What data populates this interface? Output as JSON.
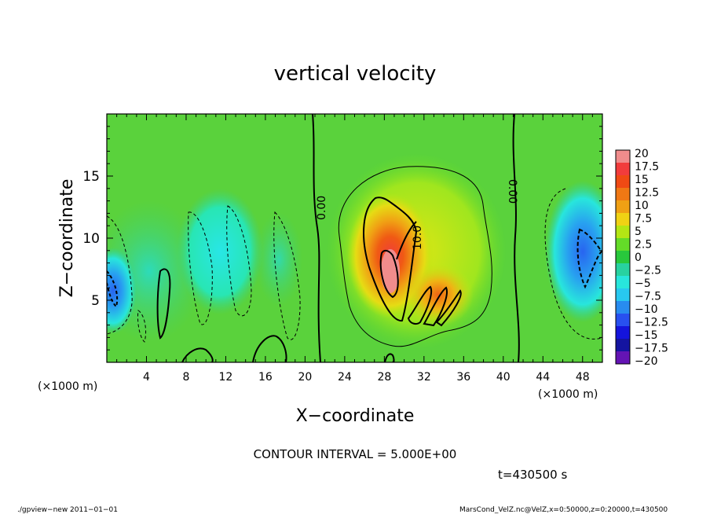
{
  "chart_data": {
    "type": "heatmap",
    "title": "vertical velocity",
    "xlabel": "X−coordinate",
    "ylabel": "Z−coordinate",
    "x_unit_label": "(×1000 m)",
    "x_unit_label_right": "(×1000 m)",
    "xlim": [
      0,
      50
    ],
    "ylim": [
      0,
      20
    ],
    "x_ticks": [
      "4",
      "8",
      "12",
      "16",
      "20",
      "24",
      "28",
      "32",
      "36",
      "40",
      "44",
      "48"
    ],
    "x_tick_values": [
      4,
      8,
      12,
      16,
      20,
      24,
      28,
      32,
      36,
      40,
      44,
      48
    ],
    "y_ticks": [
      "5",
      "10",
      "15"
    ],
    "y_tick_values": [
      5,
      10,
      15
    ],
    "colorbar": {
      "labels": [
        "20",
        "17.5",
        "15",
        "12.5",
        "10",
        "7.5",
        "5",
        "2.5",
        "0",
        "−2.5",
        "−5",
        "−7.5",
        "−10",
        "−12.5",
        "−15",
        "−17.5",
        "−20"
      ],
      "colors": [
        "#f08c8c",
        "#f23c3c",
        "#f04a14",
        "#f07814",
        "#f0a014",
        "#f0d214",
        "#b4e614",
        "#64dc28",
        "#28c83c",
        "#28d2a0",
        "#28e6dc",
        "#28c8f0",
        "#288cf0",
        "#2850f0",
        "#1414dc",
        "#1414a0",
        "#6414b4"
      ]
    },
    "features": [
      {
        "kind": "updraft",
        "x": 29,
        "z": 7.5,
        "value": 15
      },
      {
        "kind": "updraft",
        "x": 34.5,
        "z": 5,
        "value": 10
      },
      {
        "kind": "downdraft",
        "x": 48,
        "z": 7.5,
        "value": -10
      },
      {
        "kind": "downdraft",
        "x": 1,
        "z": 6,
        "value": -5
      },
      {
        "kind": "downdraft",
        "x": 10,
        "z": 8,
        "value": -5
      }
    ],
    "contour_labels": [
      "0.00",
      "10.0",
      "0.00"
    ],
    "contour_interval_text": "CONTOUR INTERVAL = 5.000E+00"
  },
  "time_text": "t=430500 s",
  "footer": {
    "left": "./gpview−new  2011−01−01",
    "right": "MarsCond_VelZ.nc@VelZ,x=0:50000,z=0:20000,t=430500"
  }
}
